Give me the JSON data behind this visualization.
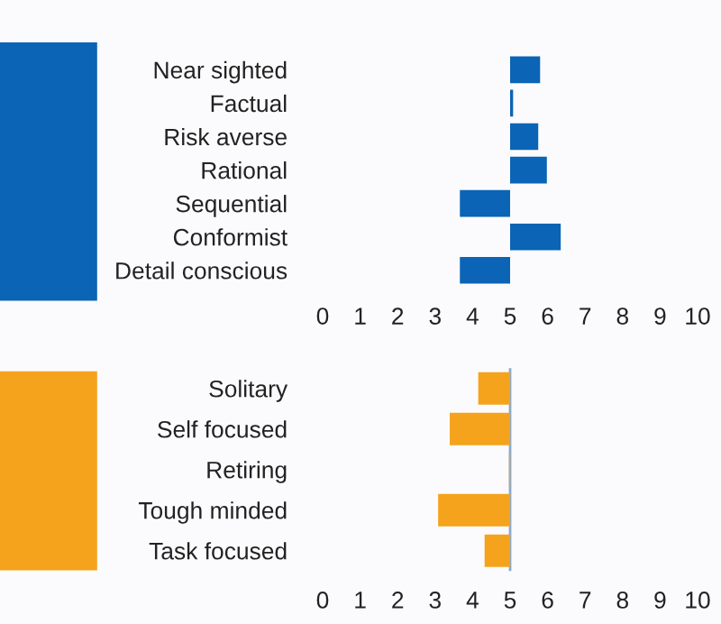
{
  "chart_data": [
    {
      "type": "bar",
      "orientation": "horizontal",
      "categories": [
        "Near sighted",
        "Factual",
        "Risk averse",
        "Rational",
        "Sequential",
        "Conformist",
        "Detail conscious"
      ],
      "base": [
        5,
        5,
        5,
        5,
        5,
        5,
        5
      ],
      "values": [
        0.8,
        0.08,
        0.75,
        0.98,
        -1.34,
        1.35,
        -1.34
      ],
      "color": "#0b64b5",
      "xlim": [
        0,
        10
      ],
      "xticks": [
        0,
        1,
        2,
        3,
        4,
        5,
        6,
        7,
        8,
        9,
        10
      ],
      "grid": false
    },
    {
      "type": "bar",
      "orientation": "horizontal",
      "categories": [
        "Solitary",
        "Self focused",
        "Retiring",
        "Tough minded",
        "Task focused"
      ],
      "base": [
        5,
        5,
        5,
        5,
        5
      ],
      "values": [
        -0.85,
        -1.61,
        -0.03,
        -1.92,
        -0.68
      ],
      "color": "#f5a31c",
      "xlim": [
        0,
        10
      ],
      "xticks": [
        0,
        1,
        2,
        3,
        4,
        5,
        6,
        7,
        8,
        9,
        10
      ],
      "grid": false,
      "ref_lines": [
        {
          "axis": "x",
          "value": 5,
          "color": "#8fa9c6"
        }
      ]
    }
  ]
}
